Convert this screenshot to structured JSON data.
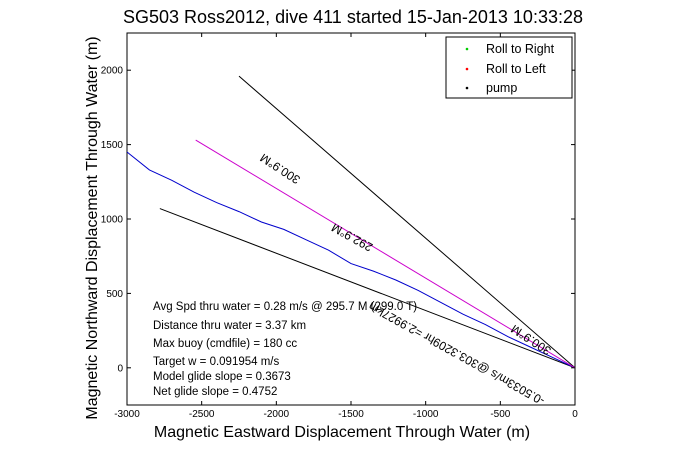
{
  "chart_data": {
    "type": "line",
    "title": "SG503 Ross2012, dive 411 started 15-Jan-2013 10:33:28",
    "xlabel": "Magnetic Eastward Displacement Through Water (m)",
    "ylabel": "Magnetic Northward Displacement Through Water (m)",
    "xlim": [
      -3000,
      0
    ],
    "ylim": [
      -250,
      2250
    ],
    "xticks": [
      -3000,
      -2500,
      -2000,
      -1500,
      -1000,
      -500,
      0
    ],
    "yticks": [
      0,
      500,
      1000,
      1500,
      2000
    ],
    "grid": false,
    "legend": {
      "placement": "top-right",
      "entries": [
        {
          "label": "Roll to Right",
          "marker": ".",
          "color": "#00cc00"
        },
        {
          "label": "Roll to Left",
          "marker": ".",
          "color": "#ff0000"
        },
        {
          "label": "pump",
          "marker": ".",
          "color": "#000000"
        }
      ]
    },
    "series": [
      {
        "color": "#0000cc",
        "x": [
          -3000,
          -2850,
          -2700,
          -2550,
          -2400,
          -2250,
          -2100,
          -1950,
          -1800,
          -1650,
          -1500,
          -1350,
          -1200,
          -1050,
          -900,
          -750,
          -600,
          -450,
          -300,
          -150,
          0
        ],
        "y": [
          1450,
          1330,
          1260,
          1180,
          1110,
          1050,
          980,
          930,
          860,
          790,
          700,
          650,
          590,
          520,
          440,
          360,
          290,
          210,
          140,
          70,
          0
        ]
      },
      {
        "color": "#cc00cc",
        "x": [
          -2540,
          0
        ],
        "y": [
          1530,
          0
        ]
      }
    ],
    "reference_lines": [
      {
        "x": [
          -2250,
          0
        ],
        "y": [
          1960,
          0
        ],
        "color": "#000000"
      },
      {
        "x": [
          -2780,
          0
        ],
        "y": [
          1070,
          0
        ],
        "color": "#000000"
      }
    ],
    "line_labels": [
      {
        "text": "300.9°M",
        "x": -1960,
        "y": 1360,
        "angle_deg": 33
      },
      {
        "text": "292.9°M",
        "x": -1480,
        "y": 900,
        "angle_deg": 29
      },
      {
        "text": "-0.5033m/s @303.3209hr =2.9927km",
        "x": -780,
        "y": 120,
        "angle_deg": 29
      },
      {
        "text": "300.9°M",
        "x": -280,
        "y": 210,
        "angle_deg": 33
      }
    ],
    "annotations": [
      "Avg Spd thru water =  0.28 m/s @ 295.7    M (299.0 T)",
      "Distance thru water =  3.37 km",
      "Max buoy (cmdfile) = 180 cc",
      "Target w = 0.091954 m/s",
      "Model glide slope = 0.3673",
      "Net glide slope = 0.4752"
    ]
  }
}
